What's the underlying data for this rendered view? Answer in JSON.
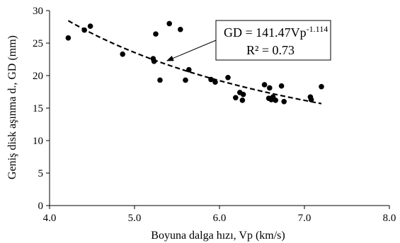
{
  "chart_data": {
    "type": "scatter",
    "title": "",
    "xlabel": "Boyuna dalga hızı, Vp (km/s)",
    "ylabel": "Geniş disk aşınma d., GD (mm)",
    "xlim": [
      4.0,
      8.0
    ],
    "ylim": [
      0,
      30
    ],
    "x_ticks": [
      "4.0",
      "5.0",
      "6.0",
      "7.0",
      "8.0"
    ],
    "y_ticks": [
      "0",
      "5",
      "10",
      "15",
      "20",
      "25",
      "30"
    ],
    "grid": false,
    "points": [
      {
        "x": 4.22,
        "y": 25.8
      },
      {
        "x": 4.41,
        "y": 27.0
      },
      {
        "x": 4.48,
        "y": 27.6
      },
      {
        "x": 4.86,
        "y": 23.3
      },
      {
        "x": 5.22,
        "y": 22.6
      },
      {
        "x": 5.23,
        "y": 22.2
      },
      {
        "x": 5.25,
        "y": 26.4
      },
      {
        "x": 5.3,
        "y": 19.3
      },
      {
        "x": 5.41,
        "y": 28.0
      },
      {
        "x": 5.54,
        "y": 27.1
      },
      {
        "x": 5.6,
        "y": 19.3
      },
      {
        "x": 5.64,
        "y": 20.9
      },
      {
        "x": 5.9,
        "y": 19.4
      },
      {
        "x": 5.95,
        "y": 19.0
      },
      {
        "x": 6.1,
        "y": 19.7
      },
      {
        "x": 6.19,
        "y": 16.6
      },
      {
        "x": 6.24,
        "y": 17.4
      },
      {
        "x": 6.27,
        "y": 16.2
      },
      {
        "x": 6.28,
        "y": 17.1
      },
      {
        "x": 6.53,
        "y": 18.6
      },
      {
        "x": 6.58,
        "y": 16.5
      },
      {
        "x": 6.59,
        "y": 18.1
      },
      {
        "x": 6.61,
        "y": 16.3
      },
      {
        "x": 6.63,
        "y": 16.7
      },
      {
        "x": 6.66,
        "y": 16.2
      },
      {
        "x": 6.73,
        "y": 18.4
      },
      {
        "x": 6.76,
        "y": 16.0
      },
      {
        "x": 7.07,
        "y": 16.7
      },
      {
        "x": 7.08,
        "y": 16.3
      },
      {
        "x": 7.2,
        "y": 18.3
      }
    ],
    "trendline": {
      "style": "dashed",
      "a": 141.47,
      "b": -1.114,
      "x_range": [
        4.22,
        7.2
      ]
    },
    "annotation": {
      "equation_main": "GD = 141.47Vp",
      "equation_exp": "-1.114",
      "r2": "R² = 0.73"
    },
    "colors": {
      "points": "#000000",
      "line": "#000000",
      "axis": "#000000"
    }
  }
}
